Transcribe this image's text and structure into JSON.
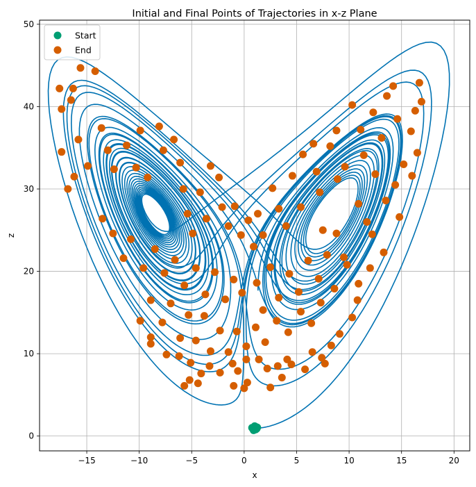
{
  "chart_data": {
    "type": "scatter",
    "title": "Initial and Final Points of Trajectories in x-z Plane",
    "xlabel": "x",
    "ylabel": "z",
    "xlim": [
      -19.5,
      21.5
    ],
    "ylim": [
      -1.8,
      50.5
    ],
    "xticks": [
      -15,
      -10,
      -5,
      0,
      5,
      10,
      15,
      20
    ],
    "yticks": [
      0,
      10,
      20,
      30,
      40,
      50
    ],
    "grid": true,
    "legend_position": "top-left",
    "colors": {
      "start": "#009e73",
      "end": "#d55e00",
      "trajectory": "#0072b2"
    },
    "series": [
      {
        "name": "Start",
        "points": [
          [
            0.85,
            0.95
          ],
          [
            1.05,
            1.05
          ],
          [
            0.95,
            0.85
          ],
          [
            1.15,
            1.1
          ],
          [
            0.75,
            1.0
          ],
          [
            1.2,
            0.9
          ],
          [
            1.0,
            1.2
          ],
          [
            0.9,
            0.7
          ],
          [
            1.1,
            0.8
          ],
          [
            1.25,
            1.05
          ]
        ]
      },
      {
        "name": "End",
        "points": [
          [
            -17.6,
            42.2
          ],
          [
            -17.4,
            39.7
          ],
          [
            -16.5,
            40.8
          ],
          [
            -15.6,
            44.7
          ],
          [
            -14.2,
            44.3
          ],
          [
            -16.3,
            42.2
          ],
          [
            -17.4,
            34.5
          ],
          [
            -16.8,
            30.0
          ],
          [
            -16.2,
            31.5
          ],
          [
            -15.8,
            36.0
          ],
          [
            -14.9,
            32.8
          ],
          [
            -13.6,
            37.4
          ],
          [
            -13.0,
            34.7
          ],
          [
            -12.4,
            32.4
          ],
          [
            -11.2,
            35.3
          ],
          [
            -10.3,
            32.6
          ],
          [
            -9.9,
            37.1
          ],
          [
            -9.2,
            31.4
          ],
          [
            -8.1,
            37.6
          ],
          [
            -7.7,
            34.7
          ],
          [
            -6.7,
            36.0
          ],
          [
            -6.1,
            33.2
          ],
          [
            -5.8,
            30.0
          ],
          [
            -5.4,
            27.0
          ],
          [
            -4.9,
            24.6
          ],
          [
            -4.2,
            29.6
          ],
          [
            -3.6,
            26.4
          ],
          [
            -3.2,
            32.8
          ],
          [
            -2.4,
            31.4
          ],
          [
            -2.1,
            27.8
          ],
          [
            -1.5,
            25.5
          ],
          [
            -0.9,
            27.9
          ],
          [
            -0.3,
            24.4
          ],
          [
            0.4,
            26.2
          ],
          [
            0.9,
            23.0
          ],
          [
            -13.5,
            26.4
          ],
          [
            -12.5,
            24.6
          ],
          [
            -11.5,
            21.6
          ],
          [
            -10.8,
            23.9
          ],
          [
            -9.6,
            20.4
          ],
          [
            -8.5,
            22.7
          ],
          [
            -7.6,
            19.8
          ],
          [
            -6.6,
            21.4
          ],
          [
            -5.7,
            18.3
          ],
          [
            -4.6,
            20.4
          ],
          [
            -3.7,
            17.2
          ],
          [
            -2.8,
            19.9
          ],
          [
            -1.8,
            16.6
          ],
          [
            -1.0,
            19.0
          ],
          [
            -0.2,
            17.4
          ],
          [
            -9.9,
            14.0
          ],
          [
            -8.9,
            16.5
          ],
          [
            -7.8,
            13.8
          ],
          [
            -7.0,
            16.1
          ],
          [
            -6.1,
            11.9
          ],
          [
            -5.3,
            14.7
          ],
          [
            -4.6,
            11.6
          ],
          [
            -3.8,
            14.6
          ],
          [
            -3.2,
            10.3
          ],
          [
            -2.3,
            12.8
          ],
          [
            -1.5,
            10.2
          ],
          [
            -0.7,
            12.7
          ],
          [
            0.2,
            10.9
          ],
          [
            1.1,
            13.2
          ],
          [
            -8.9,
            12.0
          ],
          [
            -8.9,
            11.2
          ],
          [
            -7.4,
            9.9
          ],
          [
            -6.2,
            9.7
          ],
          [
            -5.1,
            8.9
          ],
          [
            -4.1,
            7.6
          ],
          [
            -3.3,
            8.5
          ],
          [
            -2.3,
            7.7
          ],
          [
            -1.1,
            8.8
          ],
          [
            -0.6,
            7.9
          ],
          [
            0.2,
            9.3
          ],
          [
            -5.7,
            6.1
          ],
          [
            -5.2,
            6.8
          ],
          [
            -4.4,
            6.4
          ],
          [
            -1.0,
            6.1
          ],
          [
            0.0,
            5.8
          ],
          [
            0.3,
            6.5
          ],
          [
            2.2,
            8.2
          ],
          [
            2.5,
            5.9
          ],
          [
            3.2,
            8.5
          ],
          [
            3.6,
            7.1
          ],
          [
            4.1,
            9.3
          ],
          [
            4.5,
            8.7
          ],
          [
            5.8,
            8.1
          ],
          [
            6.5,
            10.2
          ],
          [
            7.4,
            9.5
          ],
          [
            7.7,
            8.8
          ],
          [
            8.3,
            11.0
          ],
          [
            9.1,
            12.4
          ],
          [
            10.3,
            14.4
          ],
          [
            10.8,
            16.5
          ],
          [
            1.3,
            27.0
          ],
          [
            1.8,
            24.4
          ],
          [
            2.7,
            30.1
          ],
          [
            3.3,
            27.6
          ],
          [
            4.0,
            25.5
          ],
          [
            4.6,
            31.6
          ],
          [
            5.4,
            27.8
          ],
          [
            5.6,
            34.2
          ],
          [
            6.6,
            35.5
          ],
          [
            6.9,
            32.1
          ],
          [
            7.2,
            29.6
          ],
          [
            7.5,
            25.0
          ],
          [
            8.2,
            35.2
          ],
          [
            8.8,
            37.1
          ],
          [
            8.9,
            31.2
          ],
          [
            9.6,
            32.7
          ],
          [
            10.3,
            40.2
          ],
          [
            11.1,
            37.2
          ],
          [
            11.4,
            34.1
          ],
          [
            12.3,
            39.3
          ],
          [
            12.5,
            31.8
          ],
          [
            13.1,
            36.2
          ],
          [
            13.6,
            41.3
          ],
          [
            14.2,
            42.5
          ],
          [
            14.6,
            38.5
          ],
          [
            15.2,
            33.0
          ],
          [
            15.9,
            37.0
          ],
          [
            16.3,
            39.5
          ],
          [
            16.9,
            40.6
          ],
          [
            16.7,
            42.9
          ],
          [
            16.5,
            34.4
          ],
          [
            16.0,
            31.6
          ],
          [
            14.8,
            26.6
          ],
          [
            13.3,
            22.3
          ],
          [
            12.0,
            20.4
          ],
          [
            10.9,
            18.5
          ],
          [
            9.5,
            21.7
          ],
          [
            8.8,
            24.6
          ],
          [
            7.9,
            22.0
          ],
          [
            7.1,
            19.1
          ],
          [
            6.1,
            21.3
          ],
          [
            5.2,
            17.5
          ],
          [
            4.3,
            19.7
          ],
          [
            3.3,
            16.8
          ],
          [
            2.5,
            20.5
          ],
          [
            1.8,
            15.3
          ],
          [
            1.2,
            18.6
          ],
          [
            10.9,
            28.2
          ],
          [
            11.7,
            26.0
          ],
          [
            12.2,
            24.5
          ],
          [
            13.5,
            28.6
          ],
          [
            14.4,
            30.5
          ],
          [
            9.8,
            20.8
          ],
          [
            8.6,
            17.9
          ],
          [
            7.3,
            16.2
          ],
          [
            6.4,
            13.7
          ],
          [
            5.4,
            15.1
          ],
          [
            4.2,
            12.6
          ],
          [
            3.1,
            14.0
          ],
          [
            2.0,
            11.4
          ],
          [
            1.4,
            9.3
          ]
        ]
      }
    ]
  }
}
